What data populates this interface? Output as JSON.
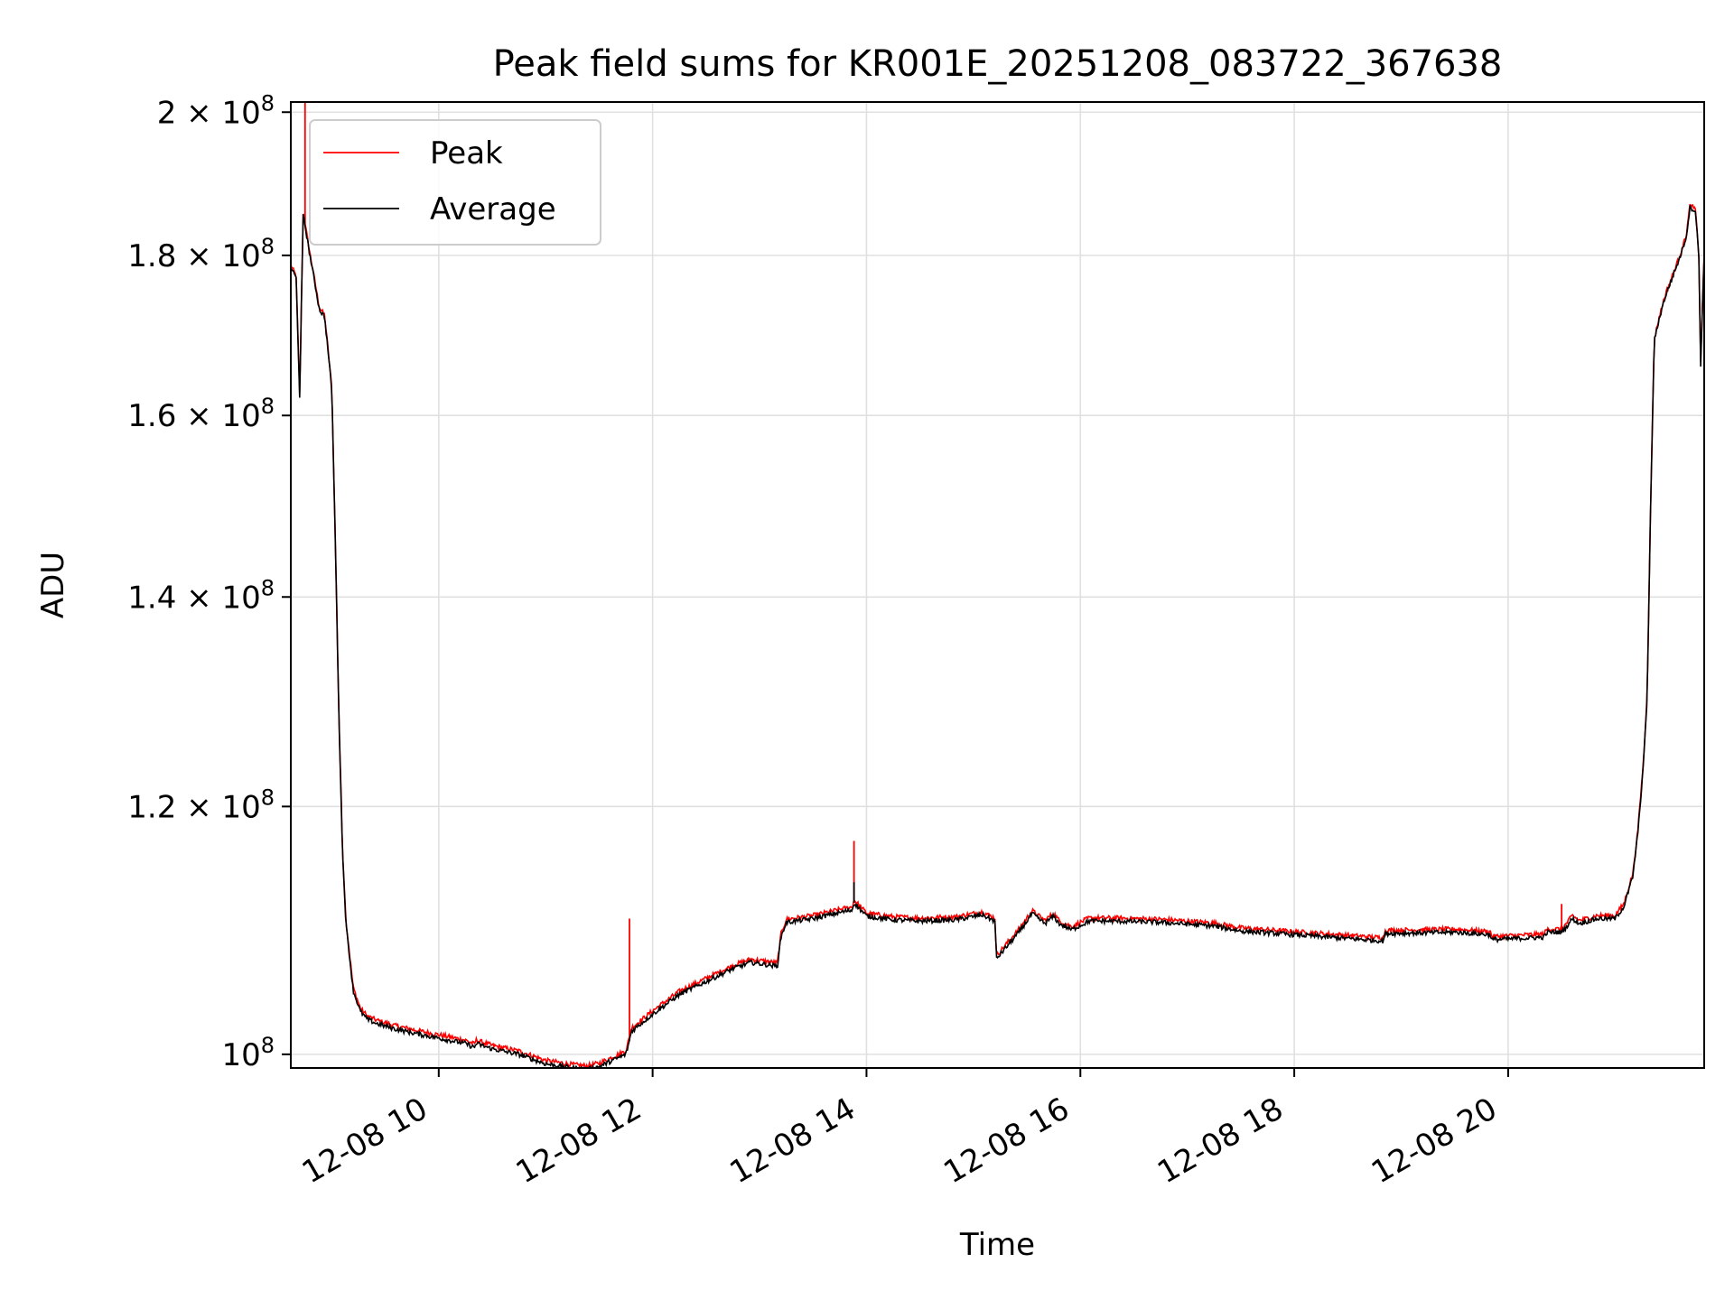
{
  "chart_data": {
    "type": "line",
    "title": "Peak field sums for KR001E_20251208_083722_367638",
    "xlabel": "Time",
    "ylabel": "ADU",
    "y_scale": "log",
    "xlim": [
      "2025-12-08 08:37",
      "2025-12-08 21:50"
    ],
    "ylim": [
      99000000,
      201500000
    ],
    "grid": true,
    "legend_position": "top-left",
    "x_ticks": [
      {
        "t": "2025-12-08 10:00",
        "label": "12-08 10"
      },
      {
        "t": "2025-12-08 12:00",
        "label": "12-08 12"
      },
      {
        "t": "2025-12-08 14:00",
        "label": "12-08 14"
      },
      {
        "t": "2025-12-08 16:00",
        "label": "12-08 16"
      },
      {
        "t": "2025-12-08 18:00",
        "label": "12-08 18"
      },
      {
        "t": "2025-12-08 20:00",
        "label": "12-08 20"
      }
    ],
    "y_ticks": [
      {
        "value": 100000000,
        "base": "10",
        "exp": "8"
      },
      {
        "value": 120000000,
        "base": "1.2 × 10",
        "exp": "8"
      },
      {
        "value": 140000000,
        "base": "1.4 × 10",
        "exp": "8"
      },
      {
        "value": 160000000,
        "base": "1.6 × 10",
        "exp": "8"
      },
      {
        "value": 180000000,
        "base": "1.8 × 10",
        "exp": "8"
      },
      {
        "value": 200000000,
        "base": "2 × 10",
        "exp": "8"
      }
    ],
    "series": [
      {
        "name": "Average",
        "color": "#000000",
        "x": [
          "2025-12-08 08:37",
          "2025-12-08 08:40",
          "2025-12-08 08:42",
          "2025-12-08 08:44",
          "2025-12-08 08:45",
          "2025-12-08 08:47",
          "2025-12-08 08:50",
          "2025-12-08 08:53",
          "2025-12-08 08:56",
          "2025-12-08 09:00",
          "2025-12-08 09:04",
          "2025-12-08 09:06",
          "2025-12-08 09:08",
          "2025-12-08 09:12",
          "2025-12-08 09:16",
          "2025-12-08 09:20",
          "2025-12-08 09:25",
          "2025-12-08 09:30",
          "2025-12-08 09:35",
          "2025-12-08 09:45",
          "2025-12-08 10:00",
          "2025-12-08 10:15",
          "2025-12-08 10:20",
          "2025-12-08 10:21",
          "2025-12-08 10:30",
          "2025-12-08 10:45",
          "2025-12-08 11:00",
          "2025-12-08 11:15",
          "2025-12-08 11:23",
          "2025-12-08 11:30",
          "2025-12-08 11:45",
          "2025-12-08 11:47",
          "2025-12-08 11:48",
          "2025-12-08 12:00",
          "2025-12-08 12:15",
          "2025-12-08 12:30",
          "2025-12-08 12:45",
          "2025-12-08 12:55",
          "2025-12-08 13:10",
          "2025-12-08 13:12",
          "2025-12-08 13:15",
          "2025-12-08 13:30",
          "2025-12-08 13:45",
          "2025-12-08 13:52",
          "2025-12-08 13:53",
          "2025-12-08 14:00",
          "2025-12-08 14:15",
          "2025-12-08 14:30",
          "2025-12-08 14:50",
          "2025-12-08 15:05",
          "2025-12-08 15:12",
          "2025-12-08 15:13",
          "2025-12-08 15:25",
          "2025-12-08 15:33",
          "2025-12-08 15:40",
          "2025-12-08 15:45",
          "2025-12-08 15:48",
          "2025-12-08 15:55",
          "2025-12-08 16:05",
          "2025-12-08 16:20",
          "2025-12-08 16:45",
          "2025-12-08 17:15",
          "2025-12-08 17:30",
          "2025-12-08 18:00",
          "2025-12-08 18:30",
          "2025-12-08 18:50",
          "2025-12-08 18:51",
          "2025-12-08 19:30",
          "2025-12-08 19:50",
          "2025-12-08 19:51",
          "2025-12-08 20:20",
          "2025-12-08 20:22",
          "2025-12-08 20:30",
          "2025-12-08 20:33",
          "2025-12-08 20:36",
          "2025-12-08 20:40",
          "2025-12-08 20:50",
          "2025-12-08 21:00",
          "2025-12-08 21:05",
          "2025-12-08 21:10",
          "2025-12-08 21:13",
          "2025-12-08 21:16",
          "2025-12-08 21:18",
          "2025-12-08 21:20",
          "2025-12-08 21:22",
          "2025-12-08 21:25",
          "2025-12-08 21:28",
          "2025-12-08 21:32",
          "2025-12-08 21:36",
          "2025-12-08 21:40",
          "2025-12-08 21:42",
          "2025-12-08 21:45",
          "2025-12-08 21:47",
          "2025-12-08 21:48",
          "2025-12-08 21:50"
        ],
        "values": [
          178500000,
          177000000,
          162000000,
          186000000,
          184000000,
          181000000,
          177000000,
          173000000,
          172000000,
          163000000,
          128000000,
          116000000,
          110000000,
          104800000,
          103200000,
          102600000,
          102300000,
          102100000,
          101900000,
          101600000,
          101200000,
          100800000,
          100500000,
          100800000,
          100400000,
          100000000,
          99300000,
          99000000,
          98900000,
          99100000,
          100000000,
          101000000,
          101700000,
          103000000,
          104500000,
          105500000,
          106500000,
          107000000,
          106700000,
          109000000,
          110200000,
          110500000,
          111000000,
          111200000,
          111800000,
          110700000,
          110400000,
          110300000,
          110400000,
          110800000,
          110300000,
          107300000,
          109300000,
          110900000,
          110100000,
          110700000,
          110100000,
          109600000,
          110300000,
          110300000,
          110200000,
          109900000,
          109500000,
          109200000,
          108900000,
          108700000,
          109300000,
          109400000,
          109200000,
          108800000,
          109000000,
          109400000,
          109400000,
          109900000,
          110500000,
          110100000,
          110500000,
          110500000,
          111500000,
          114000000,
          118000000,
          124000000,
          130000000,
          150000000,
          169000000,
          172000000,
          174500000,
          177000000,
          179500000,
          182500000,
          186500000,
          186000000,
          180000000,
          166000000,
          180000000
        ],
        "spikes": [
          {
            "t": "2025-12-08 13:53",
            "value": 113500000
          }
        ]
      },
      {
        "name": "Peak",
        "color": "#ff0000",
        "offset": 250000,
        "spikes": [
          {
            "t": "2025-12-08 08:45",
            "value": 201500000
          },
          {
            "t": "2025-12-08 11:47",
            "value": 110500000
          },
          {
            "t": "2025-12-08 13:53",
            "value": 117000000
          },
          {
            "t": "2025-12-08 20:30",
            "value": 111700000
          }
        ]
      }
    ]
  }
}
